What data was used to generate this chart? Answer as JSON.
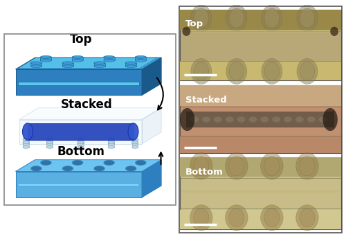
{
  "fig_width": 5.0,
  "fig_height": 3.45,
  "dpi": 100,
  "bg_color": "#ffffff",
  "labels": {
    "top": "Top",
    "stacked": "Stacked",
    "bottom": "Bottom"
  },
  "top_block": {
    "face": "#2e7fc0",
    "top": "#3d9fd8",
    "side": "#1a5a8a",
    "stud_face": "#3d9fd8",
    "stud_edge": "#1a5a8a",
    "channel": "#5bc8ee"
  },
  "stacked_block": {
    "face": "#ddeef8",
    "top": "#eef8ff",
    "side": "#c0d8e8",
    "edge": "#9ab8cc",
    "cylinder_face": "#2244bb",
    "cylinder_top": "#3355cc",
    "cylinder_dark": "#1133aa",
    "peg_face": "#c0d8e8",
    "peg_edge": "#7799aa"
  },
  "bottom_block": {
    "face": "#5ab0e0",
    "top": "#6ec4f0",
    "side": "#2e7fc0",
    "hole": "#2e6a9a",
    "channel": "#7ad4ff"
  },
  "photo_top": {
    "bg": "#b8a878",
    "circle": "#988858",
    "circle_edge": "#7a6840",
    "channel": "#a89860",
    "dark_end": "#605030",
    "separator": "#888060"
  },
  "photo_stacked": {
    "bg": "#c09070",
    "top_bg": "#c8a078",
    "hydrogel": "#605040",
    "hydrogel_center": "#504030",
    "separator": "#888060"
  },
  "photo_bottom": {
    "bg": "#c8bc88",
    "circle": "#a89060",
    "circle_edge": "#887040",
    "channel": "#b0a870",
    "separator": "#888060"
  }
}
